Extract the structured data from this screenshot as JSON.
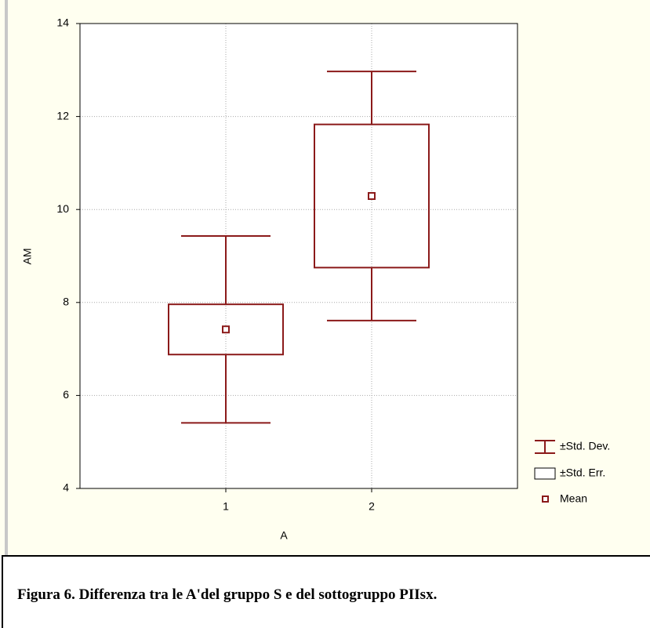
{
  "chart_data": {
    "type": "box",
    "x_label": "A",
    "y_label": "AM",
    "categories": [
      "1",
      "2"
    ],
    "means": [
      7.42,
      10.29
    ],
    "se": [
      0.54,
      1.54
    ],
    "sd": [
      2.01,
      2.68
    ],
    "ylim": [
      4,
      14
    ],
    "yticks": [
      4,
      6,
      8,
      10,
      12,
      14
    ],
    "grid": true,
    "color": "#8b1a1a",
    "legend": [
      "±Std. Dev.",
      "±Std. Err.",
      "Mean"
    ]
  },
  "caption": "Figura 6. Differenza tra le A'del gruppo S e del sottogruppo PIIsx."
}
